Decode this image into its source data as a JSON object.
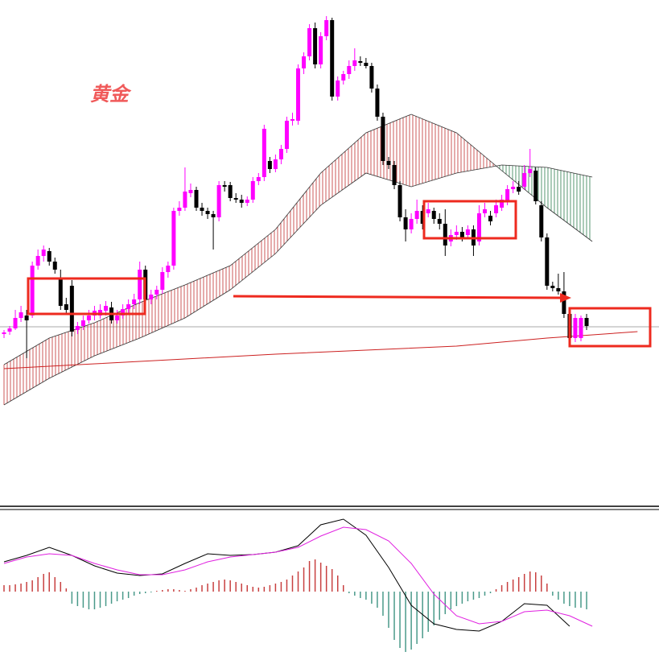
{
  "chart_data": [
    {
      "type": "candlestick",
      "title": "黄金",
      "title_color": "#f05a5a",
      "up_color": "#ff00ff",
      "down_color": "#000000",
      "xlim": [
        -0.71,
        115.8
      ],
      "ylim": [
        0,
        620
      ],
      "ohlc": [
        [
          205,
          210,
          200,
          207
        ],
        [
          208,
          215,
          204,
          212
        ],
        [
          212,
          235,
          210,
          225
        ],
        [
          225,
          240,
          220,
          232
        ],
        [
          228,
          235,
          175,
          222
        ],
        [
          228,
          295,
          225,
          290
        ],
        [
          290,
          310,
          285,
          302
        ],
        [
          302,
          315,
          295,
          310
        ],
        [
          308,
          312,
          290,
          295
        ],
        [
          295,
          300,
          280,
          285
        ],
        [
          275,
          285,
          235,
          240
        ],
        [
          242,
          250,
          230,
          235
        ],
        [
          265,
          272,
          202,
          208
        ],
        [
          210,
          220,
          205,
          215
        ],
        [
          215,
          228,
          210,
          222
        ],
        [
          222,
          235,
          218,
          228
        ],
        [
          228,
          240,
          222,
          234
        ],
        [
          228,
          242,
          224,
          235
        ],
        [
          234,
          246,
          228,
          240
        ],
        [
          238,
          245,
          218,
          222
        ],
        [
          222,
          235,
          218,
          228
        ],
        [
          228,
          242,
          224,
          236
        ],
        [
          236,
          248,
          230,
          242
        ],
        [
          242,
          255,
          236,
          248
        ],
        [
          248,
          295,
          242,
          285
        ],
        [
          285,
          290,
          244,
          248
        ],
        [
          248,
          260,
          242,
          254
        ],
        [
          254,
          265,
          248,
          260
        ],
        [
          260,
          288,
          255,
          282
        ],
        [
          282,
          295,
          275,
          290
        ],
        [
          290,
          362,
          285,
          358
        ],
        [
          358,
          370,
          352,
          362
        ],
        [
          362,
          412,
          358,
          382
        ],
        [
          380,
          392,
          375,
          384
        ],
        [
          384,
          388,
          358,
          362
        ],
        [
          362,
          368,
          352,
          358
        ],
        [
          358,
          362,
          348,
          354
        ],
        [
          354,
          358,
          310,
          350
        ],
        [
          350,
          395,
          345,
          390
        ],
        [
          390,
          395,
          382,
          388
        ],
        [
          390,
          394,
          370,
          374
        ],
        [
          374,
          380,
          368,
          372
        ],
        [
          372,
          378,
          362,
          368
        ],
        [
          368,
          376,
          364,
          372
        ],
        [
          372,
          400,
          368,
          395
        ],
        [
          395,
          405,
          390,
          400
        ],
        [
          400,
          465,
          395,
          460
        ],
        [
          420,
          425,
          405,
          410
        ],
        [
          410,
          428,
          406,
          422
        ],
        [
          422,
          440,
          416,
          435
        ],
        [
          435,
          475,
          430,
          470
        ],
        [
          470,
          480,
          464,
          472
        ],
        [
          470,
          540,
          465,
          535
        ],
        [
          535,
          555,
          528,
          550
        ],
        [
          550,
          590,
          545,
          585
        ],
        [
          585,
          592,
          535,
          540
        ],
        [
          540,
          580,
          535,
          575
        ],
        [
          575,
          600,
          570,
          595
        ],
        [
          595,
          598,
          495,
          500
        ],
        [
          500,
          525,
          495,
          520
        ],
        [
          520,
          532,
          515,
          528
        ],
        [
          528,
          545,
          522,
          538
        ],
        [
          538,
          560,
          532,
          545
        ],
        [
          544,
          550,
          538,
          542
        ],
        [
          542,
          548,
          535,
          538
        ],
        [
          538,
          542,
          505,
          510
        ],
        [
          510,
          515,
          470,
          475
        ],
        [
          475,
          480,
          415,
          420
        ],
        [
          420,
          425,
          410,
          415
        ],
        [
          415,
          420,
          385,
          390
        ],
        [
          390,
          395,
          345,
          350
        ],
        [
          350,
          360,
          320,
          335
        ],
        [
          335,
          355,
          330,
          348
        ],
        [
          348,
          372,
          342,
          358
        ],
        [
          358,
          365,
          335,
          342
        ],
        [
          355,
          368,
          350,
          360
        ],
        [
          358,
          362,
          342,
          348
        ],
        [
          348,
          355,
          335,
          342
        ],
        [
          342,
          360,
          302,
          315
        ],
        [
          320,
          335,
          314,
          328
        ],
        [
          328,
          340,
          322,
          332
        ],
        [
          332,
          338,
          320,
          324
        ],
        [
          328,
          340,
          324,
          335
        ],
        [
          335,
          340,
          302,
          315
        ],
        [
          320,
          365,
          315,
          355
        ],
        [
          355,
          368,
          350,
          360
        ],
        [
          352,
          358,
          340,
          345
        ],
        [
          355,
          372,
          350,
          365
        ],
        [
          362,
          378,
          358,
          372
        ],
        [
          370,
          390,
          365,
          385
        ],
        [
          385,
          395,
          380,
          388
        ],
        [
          388,
          395,
          378,
          382
        ],
        [
          388,
          415,
          384,
          405
        ],
        [
          405,
          435,
          400,
          410
        ],
        [
          408,
          412,
          366,
          370
        ],
        [
          365,
          370,
          320,
          325
        ],
        [
          325,
          330,
          260,
          265
        ],
        [
          265,
          270,
          258,
          262
        ],
        [
          262,
          280,
          254,
          258
        ],
        [
          258,
          282,
          225,
          230
        ],
        [
          230,
          235,
          195,
          200
        ],
        [
          200,
          230,
          195,
          225
        ],
        [
          200,
          228,
          196,
          225
        ],
        [
          225,
          230,
          210,
          215
        ]
      ],
      "cloud": {
        "up_color": "#c03030",
        "down_color": "#2e7d4f",
        "x": [
          0,
          8,
          16,
          24,
          32,
          40,
          48,
          56,
          64,
          72,
          80,
          88,
          96,
          104
        ],
        "span_a": [
          167,
          200,
          219,
          244,
          266,
          290,
          335,
          405,
          455,
          478,
          455,
          408,
          362,
          320
        ],
        "span_b": [
          117,
          150,
          178,
          200,
          225,
          260,
          305,
          365,
          405,
          388,
          405,
          415,
          412,
          400
        ]
      },
      "ma": {
        "color": "#cc2020",
        "x": [
          0,
          16,
          32,
          48,
          64,
          80,
          96,
          112
        ],
        "values": [
          162,
          168,
          174,
          180,
          185,
          190,
          200,
          208
        ]
      }
    },
    {
      "type": "macd",
      "xlim": [
        -0.71,
        115.8
      ],
      "ylim": [
        -80,
        95
      ],
      "macd_color": "#000000",
      "signal_color": "#e020e0",
      "pos_color": "#c84040",
      "neg_color": "#4a9a8a",
      "x": [
        0,
        4,
        8,
        12,
        16,
        20,
        24,
        28,
        32,
        36,
        40,
        44,
        48,
        52,
        56,
        60,
        64,
        68,
        72,
        76,
        80,
        84,
        88,
        92,
        96,
        100,
        104
      ],
      "macd": [
        37,
        45,
        55,
        45,
        32,
        23,
        20,
        22,
        35,
        47,
        45,
        46,
        49,
        57,
        83,
        90,
        70,
        30,
        -17,
        -40,
        -47,
        -49,
        -37,
        -15,
        -17,
        -43,
        null
      ],
      "signal": [
        35,
        43,
        47,
        45,
        35,
        27,
        21,
        21,
        27,
        37,
        43,
        46,
        49,
        55,
        69,
        80,
        77,
        63,
        35,
        -3,
        -30,
        -40,
        -37,
        -25,
        -23,
        -30,
        -43
      ],
      "histogram": [
        8,
        8,
        9,
        10,
        12,
        14,
        18,
        22,
        24,
        18,
        12,
        4,
        -15,
        -18,
        -20,
        -22,
        -22,
        -20,
        -18,
        -15,
        -12,
        -10,
        -8,
        -5,
        -3,
        -2,
        -1,
        1,
        2,
        3,
        3,
        2,
        1,
        3,
        5,
        8,
        10,
        12,
        14,
        15,
        14,
        12,
        10,
        8,
        6,
        5,
        6,
        8,
        10,
        12,
        15,
        20,
        25,
        30,
        38,
        40,
        36,
        32,
        28,
        20,
        8,
        -2,
        -5,
        -8,
        -10,
        -15,
        -20,
        -30,
        -45,
        -60,
        -70,
        -75,
        -72,
        -65,
        -58,
        -50,
        -42,
        -35,
        -28,
        -22,
        -18,
        -15,
        -12,
        -10,
        -8,
        -5,
        -2,
        3,
        8,
        12,
        15,
        18,
        22,
        25,
        24,
        20,
        10,
        -5,
        -10,
        -15,
        -18,
        -20,
        -20,
        -22
      ]
    }
  ]
}
